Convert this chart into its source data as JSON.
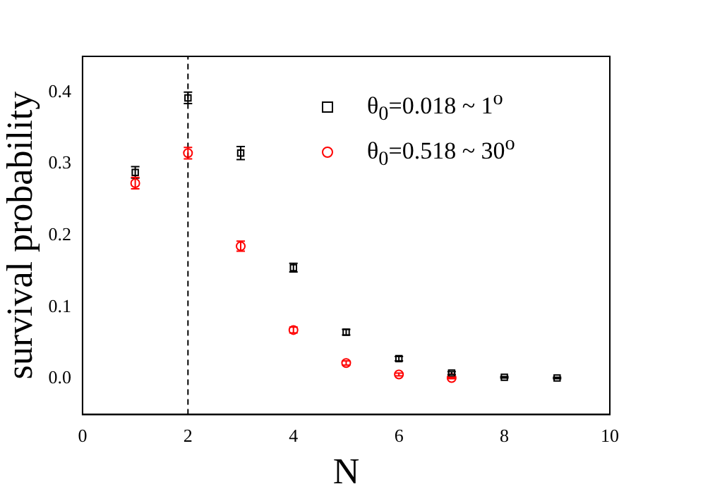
{
  "chart_data": {
    "type": "scatter",
    "xlabel": "N",
    "ylabel": "survival probability",
    "xlim": [
      0,
      10
    ],
    "xticks": [
      0,
      2,
      4,
      6,
      8,
      10
    ],
    "ylim": [
      -0.05,
      0.45
    ],
    "yticks": [
      {
        "value": 0,
        "label": "0.0"
      },
      0.1,
      0.2,
      0.3,
      0.4
    ],
    "grid": false,
    "legend": "top right",
    "series": [
      {
        "name": "θ$_{0}$=0.018 ~ 1$^{o}$",
        "color": "#000000",
        "marker": "square",
        "x": [
          1,
          2,
          3,
          4,
          5,
          6,
          7,
          8,
          9
        ],
        "values": [
          0.288,
          0.392,
          0.315,
          0.155,
          0.065,
          0.028,
          0.008,
          0.002,
          0.001
        ],
        "errors": [
          0.008,
          0.008,
          0.009,
          0.006,
          0.004,
          0.003,
          0.002,
          0.001,
          0.001
        ]
      },
      {
        "name": "θ$_{0}$=0.518 ~ 30$^{o}$",
        "color": "#ff0000",
        "marker": "circle",
        "x": [
          1,
          2,
          3,
          4,
          5,
          6,
          7
        ],
        "values": [
          0.273,
          0.315,
          0.185,
          0.068,
          0.022,
          0.006,
          0.001
        ],
        "errors": [
          0.008,
          0.008,
          0.007,
          0.004,
          0.003,
          0.002,
          0.001
        ]
      }
    ],
    "ref_lines": [
      {
        "axis": "x",
        "value": 2,
        "color": "#000000",
        "line_style": "dashed"
      }
    ]
  }
}
